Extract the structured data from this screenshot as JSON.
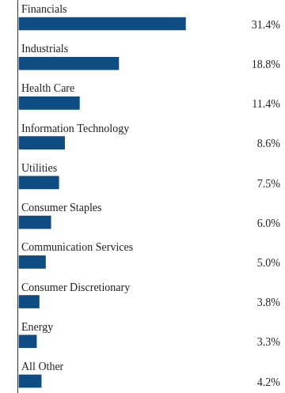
{
  "chart_data": {
    "type": "bar",
    "orientation": "horizontal",
    "categories": [
      "Financials",
      "Industrials",
      "Health Care",
      "Information Technology",
      "Utilities",
      "Consumer Staples",
      "Communication Services",
      "Consumer Discretionary",
      "Energy",
      "All Other"
    ],
    "values": [
      31.4,
      18.8,
      11.4,
      8.6,
      7.5,
      6.0,
      5.0,
      3.8,
      3.3,
      4.2
    ],
    "value_labels": [
      "31.4%",
      "18.8%",
      "11.4%",
      "8.6%",
      "7.5%",
      "6.0%",
      "5.0%",
      "3.8%",
      "3.3%",
      "4.2%"
    ],
    "color": "#0f4c81",
    "data_labels": true,
    "tick_labels": false,
    "grid": false
  }
}
